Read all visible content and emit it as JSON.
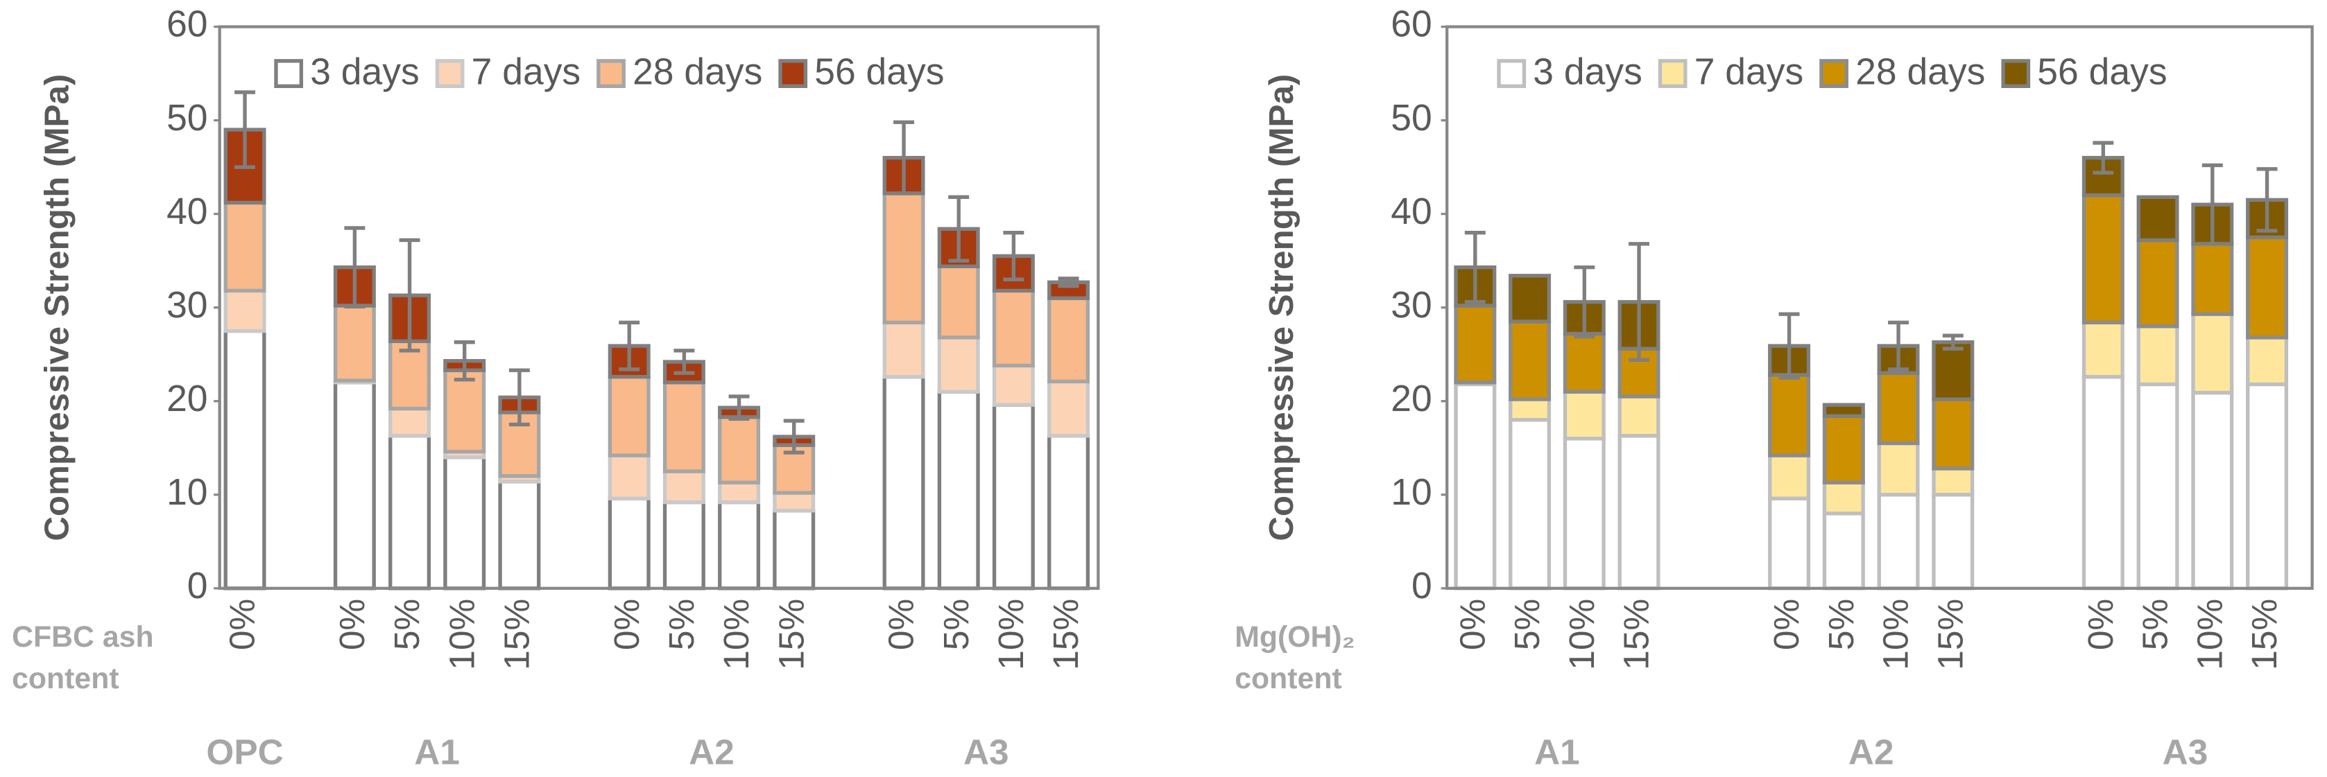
{
  "chart_data": [
    {
      "type": "bar",
      "stacked": true,
      "ylabel": "Compressive Strength (MPa)",
      "xlabel_lines": [
        "CFBC ash",
        "content"
      ],
      "categories": [
        "0%",
        "0%",
        "5%",
        "10%",
        "15%",
        "0%",
        "5%",
        "10%",
        "15%",
        "0%",
        "5%",
        "10%",
        "15%"
      ],
      "groups": [
        {
          "label": "OPC",
          "size": 1
        },
        {
          "label": "A1",
          "size": 4
        },
        {
          "label": "A2",
          "size": 4
        },
        {
          "label": "A3",
          "size": 4
        }
      ],
      "ylim": [
        0,
        60
      ],
      "yticks": [
        0,
        10,
        20,
        30,
        40,
        50,
        60
      ],
      "legend": "upper right",
      "series": [
        {
          "name": "3 days",
          "color": "#ffffff",
          "edge": "#7f7f7f",
          "values": [
            27.5,
            22,
            16.3,
            14,
            11.4,
            9.6,
            9.2,
            9.2,
            8.3,
            22.6,
            21,
            19.6,
            16.3
          ]
        },
        {
          "name": "7 days",
          "color": "#fdd3b6",
          "edge": "#c9c9c9",
          "values": [
            4.3,
            0.2,
            2.9,
            0.6,
            0.6,
            4.6,
            3.3,
            2.1,
            1.9,
            5.8,
            5.8,
            4.2,
            5.8
          ]
        },
        {
          "name": "28 days",
          "color": "#f9b98a",
          "edge": "#a6a6a6",
          "values": [
            9.4,
            8,
            7.2,
            8.7,
            6.8,
            8.4,
            9.5,
            7,
            5.1,
            13.8,
            7.6,
            8,
            8.9
          ]
        },
        {
          "name": "56 days",
          "color": "#a83a10",
          "edge": "#7f7f7f",
          "values": [
            7.8,
            4.1,
            4.9,
            1,
            1.6,
            3.3,
            2.2,
            1,
            0.9,
            3.8,
            4,
            3.7,
            1.7
          ]
        }
      ],
      "errors": [
        4,
        4.2,
        5.9,
        2,
        2.9,
        2.5,
        1.2,
        1.2,
        1.7,
        3.8,
        3.4,
        2.5,
        0.4
      ]
    },
    {
      "type": "bar",
      "stacked": true,
      "ylabel": "Compressive Strength (MPa)",
      "xlabel_lines": [
        "Mg(OH)₂",
        "content"
      ],
      "categories": [
        "0%",
        "5%",
        "10%",
        "15%",
        "0%",
        "5%",
        "10%",
        "15%",
        "0%",
        "5%",
        "10%",
        "15%"
      ],
      "groups": [
        {
          "label": "A1",
          "size": 4
        },
        {
          "label": "A2",
          "size": 4
        },
        {
          "label": "A3",
          "size": 4
        }
      ],
      "ylim": [
        0,
        60
      ],
      "yticks": [
        0,
        10,
        20,
        30,
        40,
        50,
        60
      ],
      "legend": "upper right",
      "series": [
        {
          "name": "3 days",
          "color": "#ffffff",
          "edge": "#bfbfbf",
          "values": [
            21.8,
            18,
            16,
            16.3,
            9.6,
            8,
            10,
            10,
            22.6,
            21.8,
            20.9,
            21.8
          ]
        },
        {
          "name": "7 days",
          "color": "#fee79c",
          "edge": "#bfbfbf",
          "values": [
            0.2,
            2.2,
            5,
            4.2,
            4.6,
            3.3,
            5.5,
            2.8,
            5.8,
            6.2,
            8.4,
            5
          ]
        },
        {
          "name": "28 days",
          "color": "#cc9000",
          "edge": "#8c8c8c",
          "values": [
            8.2,
            8.3,
            6.2,
            5.1,
            8.6,
            7.1,
            7.5,
            7.4,
            13.6,
            9.2,
            7.5,
            10.7
          ]
        },
        {
          "name": "56 days",
          "color": "#7f5a00",
          "edge": "#7f7f7f",
          "values": [
            4.1,
            4.9,
            3.4,
            5,
            3.1,
            1.2,
            2.9,
            6.1,
            4,
            4.6,
            4.2,
            4
          ]
        }
      ],
      "errors": [
        3.7,
        null,
        3.7,
        6.2,
        3.4,
        null,
        2.5,
        0.7,
        1.6,
        null,
        4.2,
        3.3
      ]
    }
  ]
}
